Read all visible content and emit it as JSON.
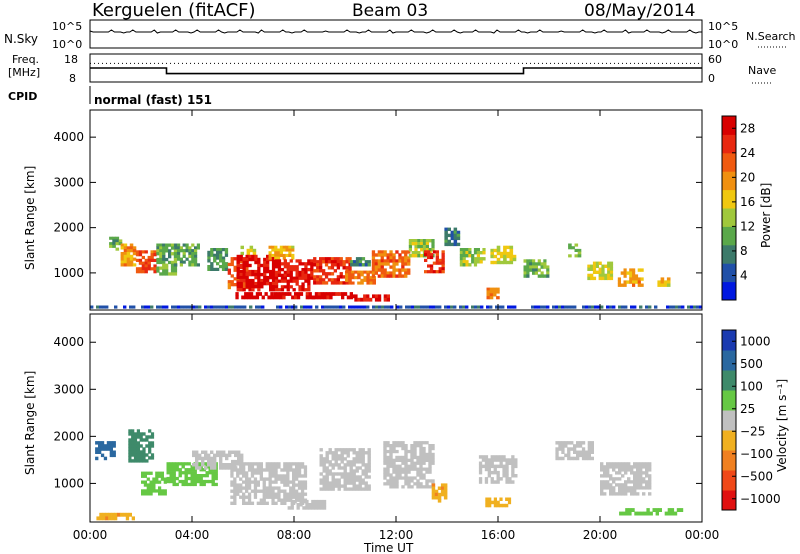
{
  "header": {
    "site": "Kerguelen (fitACF)",
    "beam": "Beam 03",
    "date": "08/May/2014"
  },
  "chart_data": [
    {
      "type": "line",
      "panel": "noise",
      "left_label": "N.Sky",
      "left_ticks": [
        "10^5",
        "10^0"
      ],
      "right_label": "N.Search",
      "right_ticks": [
        "10^5",
        "10^0"
      ],
      "xlim": [
        0,
        24
      ]
    },
    {
      "type": "line",
      "panel": "frequency",
      "left_label_line1": "Freq.",
      "left_label_line2": "[MHz]",
      "left_ticks": [
        "18",
        "8"
      ],
      "right_label": "Nave",
      "right_ticks": [
        "60",
        "0"
      ],
      "freq_steps": [
        {
          "t0": 0,
          "t1": 3.0,
          "mhz": 13.0
        },
        {
          "t0": 3.0,
          "t1": 17.0,
          "mhz": 11.0
        },
        {
          "t0": 17.0,
          "t1": 24.0,
          "mhz": 13.0
        }
      ],
      "nave": 40
    },
    {
      "type": "table",
      "panel": "cpid",
      "label": "CPID",
      "value": "normal (fast) 151"
    },
    {
      "type": "heatmap",
      "panel": "power",
      "ylabel": "Slant Range [km]",
      "y_ticks": [
        "4000",
        "3000",
        "2000",
        "1000"
      ],
      "ylim": [
        180,
        4600
      ],
      "xlim": [
        0,
        24
      ],
      "colorbar_label": "Power [dB]",
      "colorbar_ticks": [
        "28",
        "24",
        "20",
        "16",
        "12",
        "8",
        "4"
      ],
      "colorbar_range": [
        0,
        30
      ],
      "colorbar_colors": [
        "#0018e0",
        "#2050a8",
        "#3c7a6a",
        "#5aa84a",
        "#a0c83c",
        "#f0c810",
        "#f09010",
        "#f05a10",
        "#e82810",
        "#d80000"
      ]
    },
    {
      "type": "heatmap",
      "panel": "velocity",
      "ylabel": "Slant Range [km]",
      "y_ticks": [
        "4000",
        "3000",
        "2000",
        "1000"
      ],
      "ylim": [
        180,
        4600
      ],
      "xlim": [
        0,
        24
      ],
      "xlabel": "Time UT",
      "x_ticks": [
        "00:00",
        "04:00",
        "08:00",
        "12:00",
        "16:00",
        "20:00",
        "00:00"
      ],
      "colorbar_label": "Velocity [m s⁻¹]",
      "colorbar_ticks": [
        "1000",
        "500",
        "100",
        "25",
        "−25",
        "−100",
        "−500",
        "−1000"
      ],
      "colorbar_colors": [
        "#1a3ab0",
        "#2a68a0",
        "#3e8a6a",
        "#66c844",
        "#c0c0c0",
        "#f0b020",
        "#f08020",
        "#f04818",
        "#e01010"
      ]
    }
  ],
  "power_cells": [
    {
      "t": 1.0,
      "r": 1650,
      "dt": 0.5,
      "dr": 300,
      "v": 10
    },
    {
      "t": 1.5,
      "r": 1400,
      "dt": 0.6,
      "dr": 500,
      "v": 18
    },
    {
      "t": 2.2,
      "r": 1250,
      "dt": 0.8,
      "dr": 500,
      "v": 22
    },
    {
      "t": 3.0,
      "r": 1300,
      "dt": 0.8,
      "dr": 700,
      "v": 10
    },
    {
      "t": 3.8,
      "r": 1400,
      "dt": 1.0,
      "dr": 500,
      "v": 9
    },
    {
      "t": 5.0,
      "r": 1300,
      "dt": 0.8,
      "dr": 500,
      "v": 8
    },
    {
      "t": 5.8,
      "r": 1000,
      "dt": 0.8,
      "dr": 700,
      "v": 22
    },
    {
      "t": 6.2,
      "r": 1500,
      "dt": 0.6,
      "dr": 200,
      "v": 14
    },
    {
      "t": 6.5,
      "r": 1000,
      "dt": 1.5,
      "dr": 800,
      "v": 27
    },
    {
      "t": 6.5,
      "r": 500,
      "dt": 1.6,
      "dr": 150,
      "v": 29
    },
    {
      "t": 7.5,
      "r": 1450,
      "dt": 1.0,
      "dr": 300,
      "v": 16
    },
    {
      "t": 8.0,
      "r": 950,
      "dt": 1.5,
      "dr": 700,
      "v": 26
    },
    {
      "t": 8.0,
      "r": 500,
      "dt": 1.6,
      "dr": 150,
      "v": 28
    },
    {
      "t": 9.5,
      "r": 1050,
      "dt": 1.5,
      "dr": 600,
      "v": 24
    },
    {
      "t": 9.5,
      "r": 500,
      "dt": 1.6,
      "dr": 150,
      "v": 28
    },
    {
      "t": 10.6,
      "r": 1250,
      "dt": 0.8,
      "dr": 200,
      "v": 7
    },
    {
      "t": 10.6,
      "r": 900,
      "dt": 1.2,
      "dr": 300,
      "v": 20
    },
    {
      "t": 11.0,
      "r": 450,
      "dt": 1.5,
      "dr": 150,
      "v": 27
    },
    {
      "t": 11.8,
      "r": 1200,
      "dt": 1.5,
      "dr": 600,
      "v": 21
    },
    {
      "t": 13.0,
      "r": 1550,
      "dt": 1.0,
      "dr": 400,
      "v": 12
    },
    {
      "t": 13.5,
      "r": 1250,
      "dt": 0.8,
      "dr": 500,
      "v": 24
    },
    {
      "t": 14.2,
      "r": 1800,
      "dt": 0.6,
      "dr": 400,
      "v": 6
    },
    {
      "t": 15.0,
      "r": 1350,
      "dt": 1.0,
      "dr": 400,
      "v": 12
    },
    {
      "t": 15.8,
      "r": 550,
      "dt": 0.5,
      "dr": 250,
      "v": 20
    },
    {
      "t": 16.2,
      "r": 1400,
      "dt": 1.0,
      "dr": 400,
      "v": 14
    },
    {
      "t": 17.5,
      "r": 1100,
      "dt": 1.0,
      "dr": 400,
      "v": 10
    },
    {
      "t": 19.0,
      "r": 1500,
      "dt": 0.5,
      "dr": 300,
      "v": 11
    },
    {
      "t": 20.0,
      "r": 1050,
      "dt": 1.0,
      "dr": 400,
      "v": 14
    },
    {
      "t": 21.2,
      "r": 900,
      "dt": 1.0,
      "dr": 400,
      "v": 18
    },
    {
      "t": 22.5,
      "r": 800,
      "dt": 0.5,
      "dr": 200,
      "v": 16
    },
    {
      "t": 12.0,
      "r": 250,
      "dt": 24.0,
      "dr": 60,
      "v": 3
    }
  ],
  "velocity_cells": [
    {
      "t": 0.6,
      "r": 1700,
      "dt": 0.8,
      "dr": 400,
      "v": 600
    },
    {
      "t": 2.0,
      "r": 1800,
      "dt": 1.0,
      "dr": 700,
      "v": 300
    },
    {
      "t": 2.5,
      "r": 1000,
      "dt": 1.0,
      "dr": 500,
      "v": 60
    },
    {
      "t": 4.0,
      "r": 1200,
      "dt": 2.0,
      "dr": 500,
      "v": 60
    },
    {
      "t": 5.0,
      "r": 1500,
      "dt": 2.0,
      "dr": 400,
      "v": 0
    },
    {
      "t": 7.0,
      "r": 1000,
      "dt": 3.0,
      "dr": 900,
      "v": 0
    },
    {
      "t": 8.5,
      "r": 550,
      "dt": 1.5,
      "dr": 200,
      "v": 0
    },
    {
      "t": 10.0,
      "r": 1300,
      "dt": 2.0,
      "dr": 900,
      "v": 0
    },
    {
      "t": 12.5,
      "r": 1400,
      "dt": 2.0,
      "dr": 1000,
      "v": 0
    },
    {
      "t": 13.7,
      "r": 800,
      "dt": 0.6,
      "dr": 400,
      "v": -80
    },
    {
      "t": 16.0,
      "r": 1300,
      "dt": 1.5,
      "dr": 600,
      "v": 0
    },
    {
      "t": 16.0,
      "r": 600,
      "dt": 1.0,
      "dr": 200,
      "v": -60
    },
    {
      "t": 19.0,
      "r": 1700,
      "dt": 1.5,
      "dr": 400,
      "v": 0
    },
    {
      "t": 21.0,
      "r": 1100,
      "dt": 2.0,
      "dr": 700,
      "v": 0
    },
    {
      "t": 1.0,
      "r": 300,
      "dt": 1.5,
      "dr": 150,
      "v": -80
    },
    {
      "t": 22.0,
      "r": 400,
      "dt": 2.5,
      "dr": 150,
      "v": 40
    }
  ]
}
